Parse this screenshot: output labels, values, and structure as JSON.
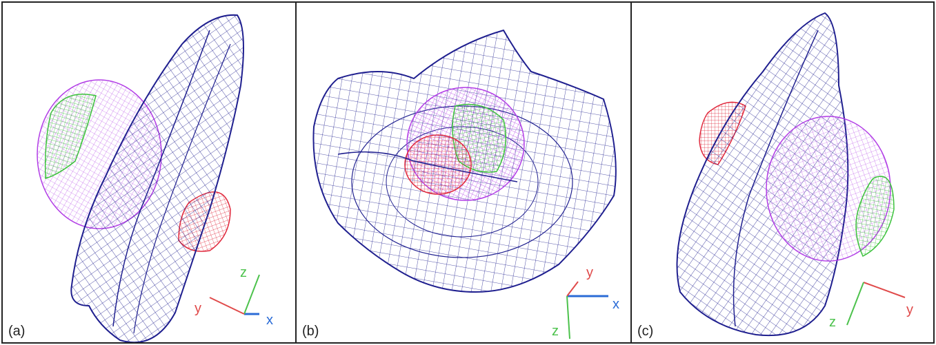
{
  "panels": [
    {
      "label": "(a)",
      "axes": {
        "x": "x",
        "y": "y",
        "z": "z"
      }
    },
    {
      "label": "(b)",
      "axes": {
        "x": "x",
        "y": "y",
        "z": "z"
      }
    },
    {
      "label": "(c)",
      "axes": {
        "x": "x",
        "y": "y",
        "z": "z"
      }
    }
  ],
  "colors": {
    "mesh_main": "#1f1f8f",
    "mesh_magenta": "#b23ee6",
    "mesh_green": "#3cc23c",
    "mesh_red": "#e0283c",
    "axis_x": "#2a6bd6",
    "axis_y": "#e04a4a",
    "axis_z": "#4cc24c"
  },
  "icons": [
    "wireframe-mesh",
    "axis-triad"
  ]
}
